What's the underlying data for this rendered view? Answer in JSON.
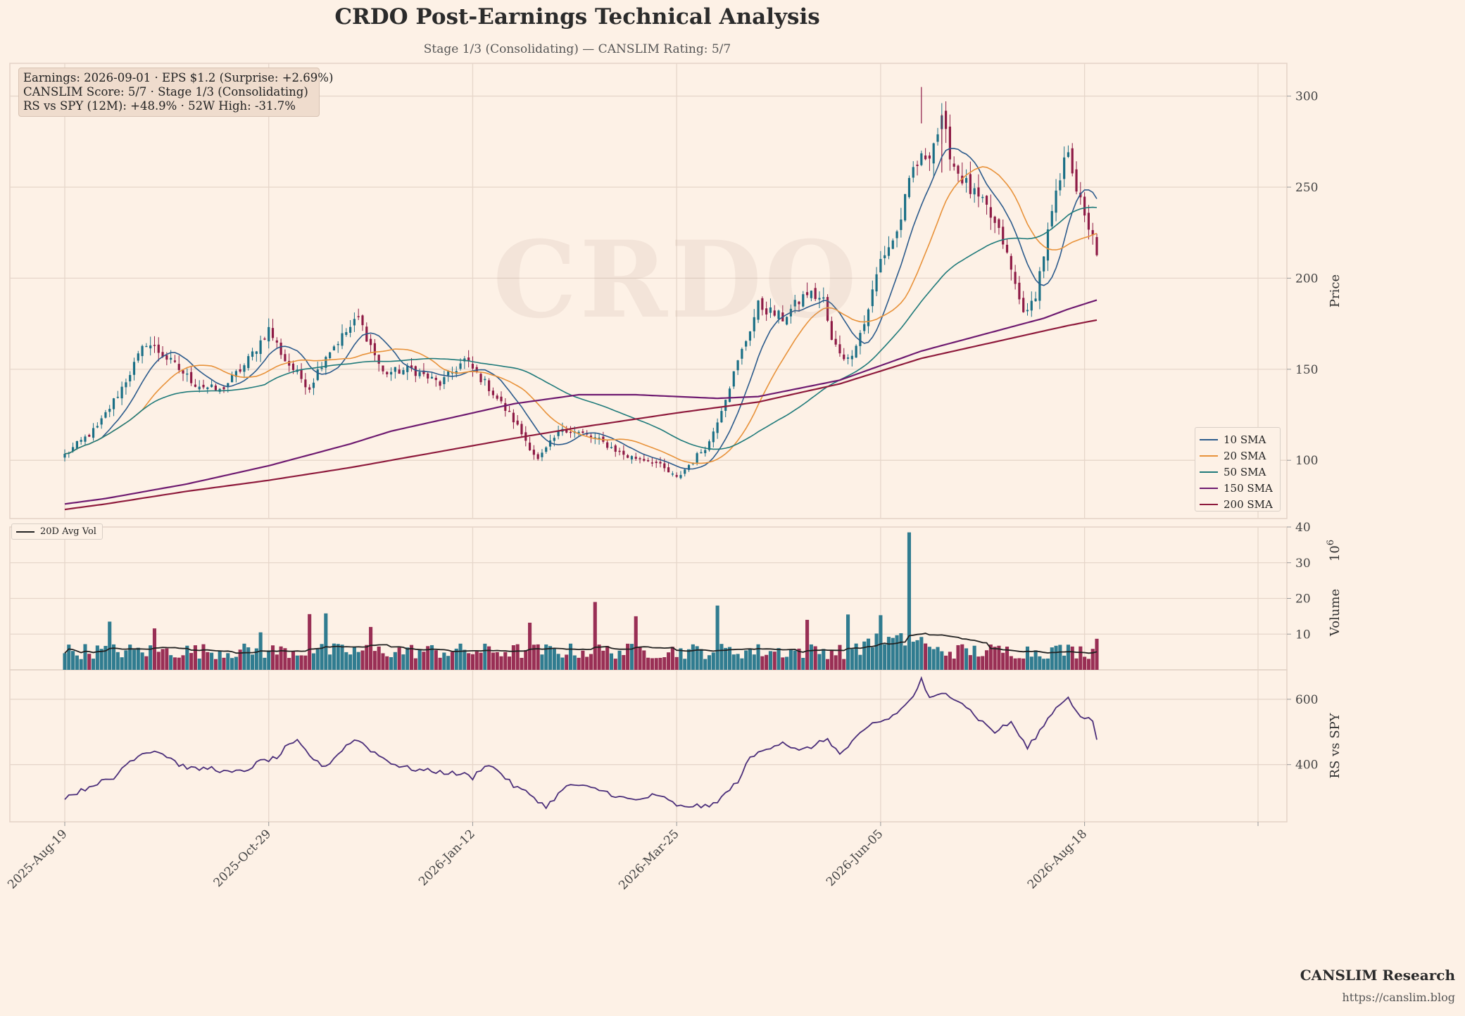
{
  "title": "CRDO Post-Earnings Technical Analysis",
  "subtitle": "Stage 1/3 (Consolidating) — CANSLIM Rating: 5/7",
  "watermark": "CRDO",
  "info_box": {
    "line1": "Earnings: 2026-09-01 · EPS $1.2 (Surprise: +2.69%)",
    "line2": "CANSLIM Score: 5/7 · Stage 1/3 (Consolidating)",
    "line3": "RS vs SPY (12M): +48.9% · 52W High: -31.7%"
  },
  "footer": {
    "brand": "CANSLIM Research",
    "url": "https://canslim.blog"
  },
  "colors": {
    "background": "#fdf1e6",
    "grid": "#e6d6ca",
    "candle_up": "#1a6f86",
    "candle_down": "#8e1a45",
    "sma10": "#2c5b8c",
    "sma20": "#e8923a",
    "sma50": "#1f7a7a",
    "sma150": "#6e1a70",
    "sma200": "#8e1a3c",
    "avg_vol": "#222222",
    "rs_line": "#4b2e7a"
  },
  "legend": {
    "items": [
      {
        "label": "10 SMA",
        "color": "#2c5b8c"
      },
      {
        "label": "20 SMA",
        "color": "#e8923a"
      },
      {
        "label": "50 SMA",
        "color": "#1f7a7a"
      },
      {
        "label": "150 SMA",
        "color": "#6e1a70"
      },
      {
        "label": "200 SMA",
        "color": "#8e1a3c"
      }
    ],
    "volume_label": "20D Avg Vol"
  },
  "chart_data": [
    {
      "type": "candlestick",
      "panel": "price",
      "ylabel": "Price",
      "ylim": [
        68,
        318
      ],
      "yticks": [
        "100",
        "150",
        "200",
        "250",
        "300"
      ],
      "x_tick_labels": [
        "2025-Aug-19",
        "2025-Oct-29",
        "2026-Jan-12",
        "2026-Mar-25",
        "2026-Jun-05",
        "2026-Aug-18"
      ],
      "x_range_sessions": [
        0,
        252
      ],
      "close_anchors": [
        [
          0,
          103
        ],
        [
          8,
          118
        ],
        [
          14,
          140
        ],
        [
          20,
          165
        ],
        [
          24,
          158
        ],
        [
          28,
          150
        ],
        [
          32,
          142
        ],
        [
          38,
          138
        ],
        [
          44,
          152
        ],
        [
          50,
          172
        ],
        [
          54,
          155
        ],
        [
          60,
          140
        ],
        [
          64,
          158
        ],
        [
          72,
          178
        ],
        [
          78,
          148
        ],
        [
          85,
          150
        ],
        [
          92,
          142
        ],
        [
          98,
          155
        ],
        [
          104,
          140
        ],
        [
          110,
          122
        ],
        [
          116,
          100
        ],
        [
          122,
          118
        ],
        [
          130,
          112
        ],
        [
          138,
          102
        ],
        [
          144,
          100
        ],
        [
          150,
          90
        ],
        [
          154,
          100
        ],
        [
          158,
          110
        ],
        [
          162,
          135
        ],
        [
          166,
          160
        ],
        [
          170,
          185
        ],
        [
          176,
          178
        ],
        [
          182,
          192
        ],
        [
          186,
          188
        ],
        [
          188,
          165
        ],
        [
          192,
          155
        ],
        [
          196,
          175
        ],
        [
          200,
          210
        ],
        [
          204,
          225
        ],
        [
          208,
          260
        ],
        [
          212,
          270
        ],
        [
          215,
          285
        ],
        [
          218,
          262
        ],
        [
          222,
          248
        ],
        [
          226,
          238
        ],
        [
          230,
          220
        ],
        [
          234,
          188
        ],
        [
          236,
          180
        ],
        [
          238,
          192
        ],
        [
          242,
          235
        ],
        [
          246,
          272
        ],
        [
          248,
          250
        ],
        [
          250,
          232
        ],
        [
          252,
          225
        ],
        [
          253,
          210
        ]
      ],
      "series": [
        {
          "name": "10 SMA",
          "period": 10
        },
        {
          "name": "20 SMA",
          "period": 20
        },
        {
          "name": "50 SMA",
          "period": 50
        }
      ],
      "long_sma": [
        {
          "name": "150 SMA",
          "points": [
            [
              0,
              76
            ],
            [
              10,
              79
            ],
            [
              30,
              87
            ],
            [
              50,
              97
            ],
            [
              70,
              109
            ],
            [
              80,
              116
            ],
            [
              90,
              121
            ],
            [
              110,
              131
            ],
            [
              126,
              136
            ],
            [
              140,
              136
            ],
            [
              160,
              134
            ],
            [
              170,
              135
            ],
            [
              190,
              144
            ],
            [
              200,
              152
            ],
            [
              210,
              160
            ],
            [
              220,
              166
            ],
            [
              230,
              172
            ],
            [
              240,
              178
            ],
            [
              246,
              183
            ],
            [
              253,
              188
            ]
          ]
        },
        {
          "name": "200 SMA",
          "points": [
            [
              0,
              73
            ],
            [
              10,
              76
            ],
            [
              30,
              83
            ],
            [
              50,
              89
            ],
            [
              70,
              96
            ],
            [
              90,
              104
            ],
            [
              110,
              112
            ],
            [
              126,
              118
            ],
            [
              150,
              126
            ],
            [
              170,
              132
            ],
            [
              190,
              142
            ],
            [
              210,
              156
            ],
            [
              230,
              166
            ],
            [
              246,
              174
            ],
            [
              253,
              177
            ]
          ]
        }
      ]
    },
    {
      "type": "bar",
      "panel": "volume",
      "ylabel": "Volume",
      "ylabel_exponent": "6",
      "ylim": [
        0,
        40
      ],
      "yticks": [
        "10",
        "20",
        "30",
        "40"
      ],
      "avg_series": "20D Avg Vol",
      "volume_spikes": [
        [
          11,
          13.5
        ],
        [
          22,
          11.6
        ],
        [
          48,
          10.5
        ],
        [
          60,
          15.6
        ],
        [
          64,
          15.8
        ],
        [
          75,
          12
        ],
        [
          114,
          13.2
        ],
        [
          130,
          19
        ],
        [
          140,
          15
        ],
        [
          160,
          18
        ],
        [
          182,
          14
        ],
        [
          192,
          15.5
        ],
        [
          200,
          15.3
        ],
        [
          207,
          38.5
        ],
        [
          244,
          7
        ],
        [
          253,
          8.7
        ]
      ]
    },
    {
      "type": "line",
      "panel": "rs",
      "ylabel": "RS vs SPY",
      "ylim": [
        225,
        690
      ],
      "yticks": [
        "400",
        "600"
      ],
      "points": [
        [
          0,
          300
        ],
        [
          4,
          320
        ],
        [
          8,
          345
        ],
        [
          12,
          355
        ],
        [
          14,
          390
        ],
        [
          18,
          430
        ],
        [
          22,
          445
        ],
        [
          26,
          420
        ],
        [
          28,
          400
        ],
        [
          32,
          385
        ],
        [
          36,
          390
        ],
        [
          40,
          375
        ],
        [
          44,
          380
        ],
        [
          48,
          410
        ],
        [
          52,
          420
        ],
        [
          54,
          450
        ],
        [
          57,
          470
        ],
        [
          60,
          430
        ],
        [
          62,
          405
        ],
        [
          64,
          395
        ],
        [
          66,
          420
        ],
        [
          70,
          470
        ],
        [
          72,
          475
        ],
        [
          75,
          445
        ],
        [
          78,
          420
        ],
        [
          82,
          395
        ],
        [
          86,
          385
        ],
        [
          90,
          380
        ],
        [
          94,
          375
        ],
        [
          98,
          370
        ],
        [
          100,
          360
        ],
        [
          103,
          400
        ],
        [
          106,
          385
        ],
        [
          110,
          335
        ],
        [
          114,
          310
        ],
        [
          118,
          270
        ],
        [
          121,
          310
        ],
        [
          124,
          340
        ],
        [
          128,
          330
        ],
        [
          132,
          320
        ],
        [
          136,
          300
        ],
        [
          140,
          290
        ],
        [
          144,
          305
        ],
        [
          148,
          295
        ],
        [
          150,
          270
        ],
        [
          154,
          275
        ],
        [
          158,
          270
        ],
        [
          162,
          310
        ],
        [
          165,
          350
        ],
        [
          168,
          420
        ],
        [
          172,
          450
        ],
        [
          176,
          470
        ],
        [
          180,
          440
        ],
        [
          184,
          460
        ],
        [
          187,
          480
        ],
        [
          190,
          430
        ],
        [
          194,
          480
        ],
        [
          198,
          525
        ],
        [
          202,
          540
        ],
        [
          206,
          580
        ],
        [
          208,
          610
        ],
        [
          210,
          660
        ],
        [
          212,
          600
        ],
        [
          216,
          620
        ],
        [
          220,
          590
        ],
        [
          224,
          540
        ],
        [
          228,
          500
        ],
        [
          232,
          530
        ],
        [
          236,
          450
        ],
        [
          240,
          520
        ],
        [
          242,
          560
        ],
        [
          246,
          610
        ],
        [
          248,
          560
        ],
        [
          250,
          540
        ],
        [
          252,
          535
        ],
        [
          253,
          470
        ]
      ]
    }
  ]
}
